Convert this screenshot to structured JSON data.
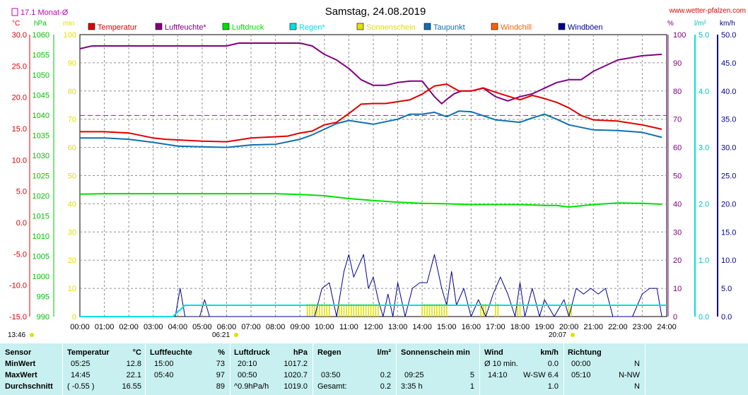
{
  "header": {
    "title": "Samstag, 24.08.2019",
    "site": "www.wetter-pfalzen.com",
    "month_avg": "17.1 Monat-Ø"
  },
  "legend": [
    {
      "name": "Temperatur",
      "color": "#e00000"
    },
    {
      "name": "Luftfeuchte*",
      "color": "#800080"
    },
    {
      "name": "Luftdruck",
      "color": "#00e000"
    },
    {
      "name": "Regen*",
      "color": "#00e0e0"
    },
    {
      "name": "Sonnenschein",
      "color": "#e0e000"
    },
    {
      "name": "Taupunkt",
      "color": "#1070b0"
    },
    {
      "name": "Windchill",
      "color": "#ff6000"
    },
    {
      "name": "Windböen",
      "color": "#000090"
    }
  ],
  "axes": {
    "units": {
      "celsius": "°C",
      "hpa": "hPa",
      "min": "min",
      "pct": "%",
      "rain": "l/m²",
      "kmh": "km/h"
    },
    "temp_ticks": [
      "30.0",
      "25.0",
      "20.0",
      "15.0",
      "10.0",
      "5.0",
      "0.0",
      "-5.0",
      "-10.0",
      "-15.0"
    ],
    "hpa_ticks": [
      "1060",
      "1055",
      "1050",
      "1045",
      "1040",
      "1035",
      "1030",
      "1025",
      "1020",
      "1015",
      "1010",
      "1005",
      "1000",
      "995",
      "990"
    ],
    "min_ticks": [
      "100",
      "90",
      "80",
      "70",
      "60",
      "50",
      "40",
      "30",
      "20",
      "10",
      "0"
    ],
    "pct_ticks": [
      "100",
      "90",
      "80",
      "70",
      "60",
      "50",
      "40",
      "30",
      "20",
      "10",
      "0"
    ],
    "rain_ticks": [
      "5.0",
      "4.0",
      "3.0",
      "2.0",
      "1.0",
      "0.0"
    ],
    "kmh_ticks": [
      "50.0",
      "45.0",
      "40.0",
      "35.0",
      "30.0",
      "25.0",
      "20.0",
      "15.0",
      "10.0",
      "5.0",
      "0.0"
    ],
    "x_ticks": [
      "00:00",
      "01:00",
      "02:00",
      "03:00",
      "04:00",
      "05:00",
      "06:00",
      "07:00",
      "08:00",
      "09:00",
      "10:00",
      "11:00",
      "12:00",
      "13:00",
      "14:00",
      "15:00",
      "16:00",
      "17:00",
      "18:00",
      "19:00",
      "20:00",
      "21:00",
      "22:00",
      "23:00",
      "24:00"
    ],
    "sunrise": "06:21",
    "sunset": "20:07",
    "daylight": "13:46"
  },
  "chart_data": {
    "type": "line",
    "title": "Samstag, 24.08.2019",
    "xlabel": "",
    "ylabel": "",
    "x_range_hours": [
      0,
      24
    ],
    "grid": true,
    "month_avg_temp": 17.1,
    "series": [
      {
        "name": "Temperatur",
        "axis": "°C",
        "ylim": [
          -15,
          30
        ],
        "x": [
          0,
          1,
          2,
          3,
          3.5,
          4,
          5,
          6,
          6.5,
          7,
          8,
          8.5,
          9,
          9.5,
          10,
          10.5,
          11,
          11.5,
          12,
          12.5,
          13,
          13.5,
          14,
          14.5,
          15,
          15.5,
          16,
          16.5,
          17,
          17.5,
          18,
          18.5,
          19,
          19.5,
          20,
          20.5,
          21,
          22,
          23,
          23.8
        ],
        "y": [
          14.5,
          14.5,
          14.3,
          13.5,
          13.3,
          13.2,
          13,
          12.9,
          13.2,
          13.5,
          13.7,
          13.8,
          14.3,
          14.6,
          15.6,
          16,
          17.4,
          18.9,
          19,
          19,
          19.3,
          19.6,
          20.5,
          21.8,
          22.1,
          21,
          21,
          21.5,
          20.8,
          20.2,
          19.6,
          20.3,
          19.8,
          19.2,
          18.3,
          17.1,
          16.4,
          16.2,
          15.6,
          14.9
        ]
      },
      {
        "name": "Luftfeuchte*",
        "axis": "%",
        "ylim": [
          0,
          100
        ],
        "x": [
          0,
          0.5,
          1,
          2,
          3,
          4,
          5,
          6,
          6.5,
          7,
          8,
          9,
          9.5,
          10,
          10.5,
          11,
          11.5,
          12,
          12.5,
          13,
          13.5,
          14,
          14.5,
          14.8,
          15,
          15.3,
          15.6,
          16,
          16.5,
          17,
          17.5,
          18,
          18.5,
          19,
          19.5,
          20,
          20.5,
          21,
          22,
          23,
          23.8
        ],
        "y": [
          95,
          96,
          96,
          96,
          96,
          96,
          96,
          96,
          97,
          97,
          97,
          97,
          96,
          93,
          91,
          88,
          84,
          82,
          82,
          83,
          83.5,
          83.5,
          78,
          75.5,
          77,
          79,
          80,
          80,
          81,
          78,
          76.5,
          78,
          79,
          81,
          83,
          84,
          84,
          87,
          91,
          92.5,
          93
        ]
      },
      {
        "name": "Luftdruck",
        "axis": "hPa",
        "ylim": [
          990,
          1060
        ],
        "x": [
          0,
          1,
          2,
          3,
          4,
          5,
          6,
          7,
          8,
          9,
          10,
          11,
          12,
          13,
          14,
          15,
          16,
          17,
          18,
          19,
          19.5,
          20,
          20.5,
          21,
          22,
          23,
          23.8
        ],
        "y": [
          1020.4,
          1020.5,
          1020.5,
          1020.5,
          1020.5,
          1020.5,
          1020.5,
          1020.5,
          1020.5,
          1020.3,
          1020,
          1019.3,
          1018.8,
          1018.4,
          1018.1,
          1018,
          1017.8,
          1017.8,
          1017.8,
          1017.6,
          1017.6,
          1017.2,
          1017.5,
          1017.8,
          1018.2,
          1018.1,
          1017.9
        ]
      },
      {
        "name": "Regen*",
        "axis": "l/m²",
        "ylim": [
          0,
          5
        ],
        "x": [
          0,
          3.8,
          4.3,
          8,
          12,
          16,
          20,
          24
        ],
        "y": [
          0,
          0,
          0.2,
          0.2,
          0.2,
          0.2,
          0.2,
          0.2
        ]
      },
      {
        "name": "Taupunkt",
        "axis": "°C",
        "ylim": [
          -15,
          30
        ],
        "x": [
          0,
          1,
          2,
          3,
          4,
          5,
          6,
          7,
          8,
          9,
          9.5,
          10,
          10.5,
          11,
          12,
          13,
          13.5,
          14,
          14.5,
          15,
          15.5,
          16,
          17,
          18,
          18.5,
          19,
          19.5,
          20,
          21,
          22,
          23,
          23.8
        ],
        "y": [
          13.5,
          13.5,
          13.3,
          12.8,
          12.2,
          12.1,
          12,
          12.4,
          12.5,
          13.3,
          14,
          14.9,
          15.8,
          16.3,
          15.7,
          16.5,
          17.3,
          17.3,
          17.6,
          16.9,
          17.8,
          17.7,
          16.4,
          16,
          16.7,
          17.3,
          16.5,
          15.6,
          14.8,
          14.7,
          14.4,
          13.6
        ]
      },
      {
        "name": "Windböen",
        "axis": "km/h",
        "ylim": [
          0,
          50
        ],
        "x": [
          0,
          3.9,
          4.1,
          4.3,
          4.5,
          4.9,
          5.1,
          5.3,
          9.6,
          9.9,
          10.2,
          10.5,
          10.8,
          11,
          11.2,
          11.4,
          11.6,
          11.8,
          12,
          12.2,
          12.4,
          12.6,
          12.8,
          13,
          13.3,
          13.6,
          13.9,
          14.2,
          14.5,
          14.8,
          15,
          15.2,
          15.4,
          15.7,
          16,
          16.3,
          16.6,
          16.9,
          17.2,
          17.5,
          17.8,
          18,
          18.2,
          18.5,
          18.8,
          19,
          19.4,
          19.8,
          20,
          20.3,
          20.6,
          20.9,
          21.2,
          21.5,
          21.8,
          22,
          22.3,
          22.6,
          23,
          23.3,
          23.6,
          23.8
        ],
        "y": [
          0,
          0,
          5,
          0,
          0,
          0,
          3,
          0,
          0,
          5,
          6,
          0,
          8,
          11,
          7,
          9,
          11,
          5,
          7,
          3,
          0,
          4,
          0,
          6,
          0,
          5,
          6,
          6,
          11,
          5,
          2,
          8,
          2,
          5,
          0,
          3,
          0,
          4,
          7,
          4,
          0,
          6,
          0,
          5,
          0,
          3,
          0,
          3,
          0,
          5,
          4,
          5,
          4,
          5,
          0,
          0,
          0,
          0,
          4,
          5,
          5,
          0
        ]
      }
    ],
    "sunshine_hours": [
      [
        9.3,
        10.2
      ],
      [
        10.6,
        12.2
      ],
      [
        14.0,
        15.0
      ],
      [
        16.4,
        16.6
      ],
      [
        17.0,
        17.1
      ],
      [
        17.9,
        18.0
      ],
      [
        20.0,
        20.1
      ]
    ]
  },
  "stats": {
    "sensor": {
      "title": "Sensor",
      "rows": [
        "MinWert",
        "MaxWert",
        "Durchschnitt"
      ]
    },
    "temperatur": {
      "title": "Temperatur",
      "unit": "°C",
      "times": [
        "05:25",
        "14:45",
        "( -0.55 )"
      ],
      "values": [
        "12.8",
        "22.1",
        "16.55"
      ]
    },
    "luftfeuchte": {
      "title": "Luftfeuchte",
      "unit": "%",
      "times": [
        "15:00",
        "05:40",
        ""
      ],
      "values": [
        "73",
        "97",
        "89"
      ]
    },
    "luftdruck": {
      "title": "Luftdruck",
      "unit": "hPa",
      "times": [
        "20:10",
        "00:50",
        "^0.9hPa/h"
      ],
      "values": [
        "1017.2",
        "1020.7",
        "1019.0"
      ]
    },
    "regen": {
      "title": "Regen",
      "unit": "l/m²",
      "times": [
        "",
        "03:50",
        "Gesamt:"
      ],
      "values": [
        "",
        "0.2",
        "0.2"
      ]
    },
    "sonnenschein": {
      "title": "Sonnenschein min",
      "times": [
        "",
        "09:25",
        "3:35 h"
      ],
      "values": [
        "",
        "5",
        "1"
      ]
    },
    "wind": {
      "title": "Wind",
      "unit": "km/h",
      "times": [
        "Ø 10 min.",
        "14:10",
        ""
      ],
      "values": [
        "0.0",
        "W-SW 6.4",
        "1.0"
      ]
    },
    "richtung": {
      "title": "Richtung",
      "times": [
        "00:00",
        "05:10",
        ""
      ],
      "values": [
        "N",
        "N-NW",
        "N"
      ]
    }
  }
}
